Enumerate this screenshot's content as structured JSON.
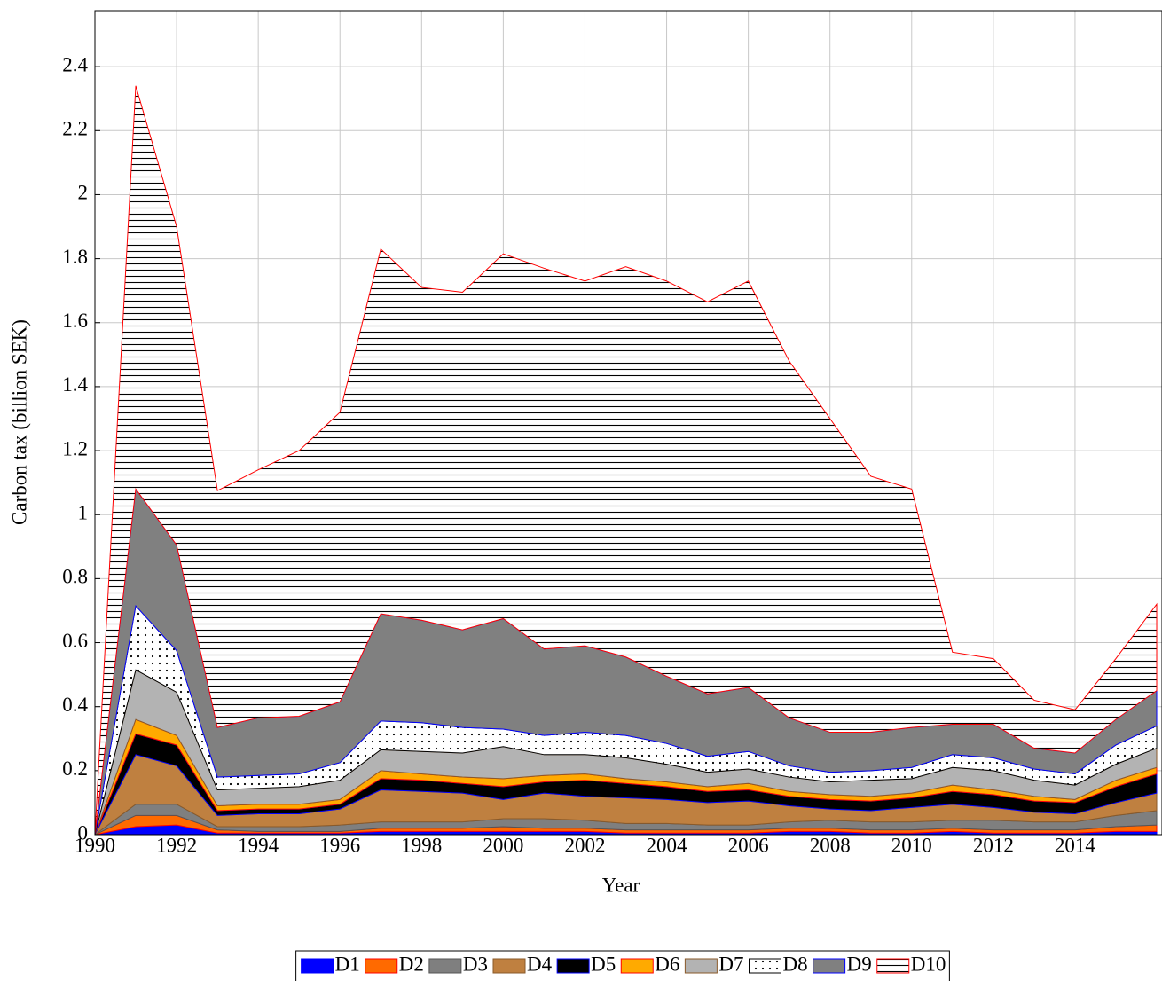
{
  "chart_data": {
    "type": "stacked-area",
    "x_label": "Year",
    "y_label": "Carbon tax (billion SEK)",
    "x": [
      1990,
      1991,
      1992,
      1993,
      1994,
      1995,
      1996,
      1997,
      1998,
      1999,
      2000,
      2001,
      2002,
      2003,
      2004,
      2005,
      2006,
      2007,
      2008,
      2009,
      2010,
      2011,
      2012,
      2013,
      2014,
      2015,
      2016
    ],
    "xlim": [
      1990,
      2016.13
    ],
    "ylim": [
      0,
      2.575
    ],
    "xticks": [
      1990,
      1992,
      1994,
      1996,
      1998,
      2000,
      2002,
      2004,
      2006,
      2008,
      2010,
      2012,
      2014
    ],
    "yticks": [
      0,
      0.2,
      0.4,
      0.6,
      0.8,
      1,
      1.2,
      1.4,
      1.6,
      1.8,
      2,
      2.2,
      2.4
    ],
    "grid": true,
    "legend": "bottom",
    "series": [
      {
        "name": "D1",
        "color": "#0000ff",
        "line_color": "#0000ff",
        "values": [
          0,
          0.025,
          0.03,
          0.005,
          0.005,
          0.005,
          0.005,
          0.01,
          0.01,
          0.01,
          0.01,
          0.01,
          0.01,
          0.005,
          0.005,
          0.005,
          0.005,
          0.01,
          0.01,
          0.005,
          0.005,
          0.01,
          0.005,
          0.005,
          0.005,
          0.01,
          0.01
        ]
      },
      {
        "name": "D2",
        "color": "#ff6a00",
        "line_color": "#ff0000",
        "values": [
          0,
          0.035,
          0.03,
          0.01,
          0.005,
          0.005,
          0.005,
          0.01,
          0.01,
          0.01,
          0.015,
          0.01,
          0.01,
          0.01,
          0.01,
          0.01,
          0.01,
          0.01,
          0.01,
          0.01,
          0.01,
          0.01,
          0.01,
          0.01,
          0.01,
          0.015,
          0.02
        ]
      },
      {
        "name": "D3",
        "color": "#7f7f7f",
        "line_color": "#555555",
        "values": [
          0,
          0.035,
          0.035,
          0.01,
          0.015,
          0.015,
          0.02,
          0.02,
          0.02,
          0.02,
          0.025,
          0.03,
          0.025,
          0.02,
          0.02,
          0.015,
          0.015,
          0.02,
          0.025,
          0.025,
          0.025,
          0.025,
          0.03,
          0.025,
          0.025,
          0.035,
          0.045
        ]
      },
      {
        "name": "D4",
        "color": "#bf8040",
        "line_color": "#8a5a2a",
        "values": [
          0,
          0.155,
          0.12,
          0.035,
          0.04,
          0.04,
          0.05,
          0.1,
          0.095,
          0.09,
          0.06,
          0.08,
          0.075,
          0.08,
          0.075,
          0.07,
          0.075,
          0.05,
          0.035,
          0.035,
          0.045,
          0.05,
          0.04,
          0.03,
          0.025,
          0.04,
          0.055
        ]
      },
      {
        "name": "D5",
        "color": "#000000",
        "line_color": "#0000ff",
        "values": [
          0,
          0.065,
          0.065,
          0.015,
          0.015,
          0.015,
          0.015,
          0.035,
          0.035,
          0.03,
          0.04,
          0.035,
          0.05,
          0.045,
          0.04,
          0.035,
          0.035,
          0.03,
          0.03,
          0.03,
          0.03,
          0.04,
          0.04,
          0.035,
          0.035,
          0.05,
          0.06
        ]
      },
      {
        "name": "D6",
        "color": "#ffaa00",
        "line_color": "#ff0000",
        "values": [
          0,
          0.045,
          0.03,
          0.015,
          0.015,
          0.015,
          0.015,
          0.025,
          0.02,
          0.02,
          0.025,
          0.02,
          0.02,
          0.015,
          0.015,
          0.015,
          0.02,
          0.015,
          0.015,
          0.015,
          0.015,
          0.02,
          0.015,
          0.015,
          0.01,
          0.02,
          0.02
        ]
      },
      {
        "name": "D7",
        "color": "#b3b3b3",
        "line_color": "#8a5a2a",
        "values": [
          0,
          0.155,
          0.135,
          0.05,
          0.05,
          0.055,
          0.06,
          0.065,
          0.07,
          0.075,
          0.1,
          0.065,
          0.06,
          0.065,
          0.055,
          0.045,
          0.045,
          0.045,
          0.04,
          0.05,
          0.045,
          0.055,
          0.06,
          0.05,
          0.045,
          0.05,
          0.06
        ]
      },
      {
        "name": "D8",
        "color": "#000000",
        "line_color": "#000000",
        "pattern": "dots",
        "values": [
          0,
          0.2,
          0.13,
          0.04,
          0.04,
          0.04,
          0.055,
          0.09,
          0.09,
          0.08,
          0.055,
          0.06,
          0.07,
          0.07,
          0.065,
          0.05,
          0.055,
          0.035,
          0.03,
          0.03,
          0.035,
          0.04,
          0.04,
          0.035,
          0.035,
          0.06,
          0.07
        ]
      },
      {
        "name": "D9",
        "color": "#808080",
        "line_color": "#0000ff",
        "values": [
          0,
          0.365,
          0.33,
          0.155,
          0.18,
          0.18,
          0.19,
          0.335,
          0.32,
          0.305,
          0.345,
          0.27,
          0.27,
          0.245,
          0.21,
          0.195,
          0.2,
          0.15,
          0.125,
          0.12,
          0.125,
          0.095,
          0.105,
          0.065,
          0.065,
          0.08,
          0.11
        ]
      },
      {
        "name": "D10",
        "color": "#000000",
        "line_color": "#ff0000",
        "pattern": "horizontal lines",
        "values": [
          0,
          1.26,
          0.995,
          0.74,
          0.775,
          0.83,
          0.905,
          1.14,
          1.04,
          1.055,
          1.14,
          1.19,
          1.14,
          1.22,
          1.235,
          1.225,
          1.27,
          1.115,
          0.98,
          0.8,
          0.745,
          0.225,
          0.205,
          0.15,
          0.135,
          0.19,
          0.27
        ]
      }
    ]
  }
}
